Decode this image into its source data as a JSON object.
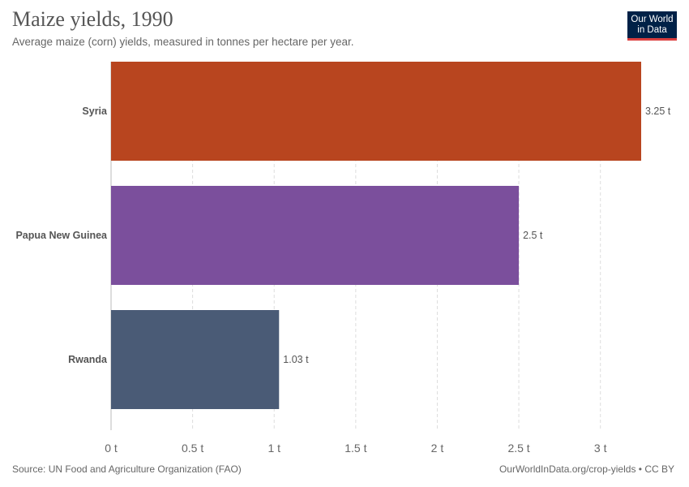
{
  "header": {
    "title": "Maize yields, 1990",
    "subtitle": "Average maize (corn) yields, measured in tonnes per hectare per year."
  },
  "logo": {
    "line1": "Our World",
    "line2": "in Data"
  },
  "footer": {
    "source": "Source: UN Food and Agriculture Organization (FAO)",
    "link": "OurWorldInData.org/crop-yields • CC BY"
  },
  "colors": {
    "logo_bg": "#002147",
    "logo_accent": "#dc3f3f",
    "grid": "#dddddd"
  },
  "chart_data": {
    "type": "bar",
    "orientation": "horizontal",
    "title": "Maize yields, 1990",
    "subtitle": "Average maize (corn) yields, measured in tonnes per hectare per year.",
    "categories": [
      "Syria",
      "Papua New Guinea",
      "Rwanda"
    ],
    "values": [
      3.25,
      2.5,
      1.03
    ],
    "value_labels": [
      "3.25 t",
      "2.5 t",
      "1.03 t"
    ],
    "colors": [
      "#b8451f",
      "#7b4f9c",
      "#4a5b76"
    ],
    "xlim": [
      0,
      3.25
    ],
    "xticks": [
      0,
      0.5,
      1,
      1.5,
      2,
      2.5,
      3
    ],
    "xtick_labels": [
      "0 t",
      "0.5 t",
      "1 t",
      "1.5 t",
      "2 t",
      "2.5 t",
      "3 t"
    ],
    "grid": true,
    "legend": "none"
  }
}
